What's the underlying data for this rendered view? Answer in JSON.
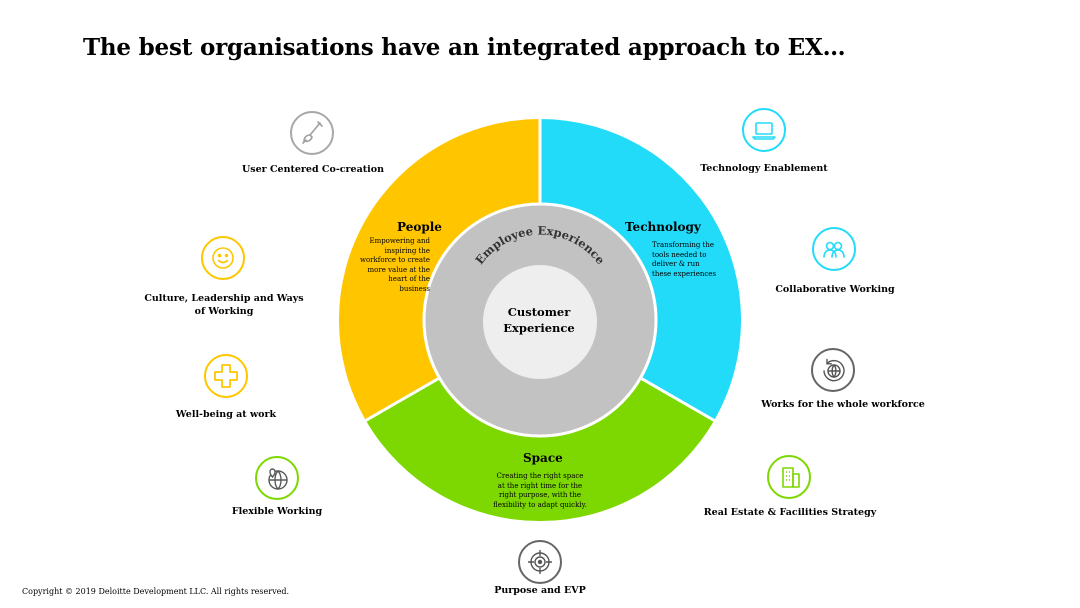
{
  "title": "The best organisations have an integrated approach to EX…",
  "copyright": "Copyright © 2019 Deloitte Development LLC. All rights reserved.",
  "colors": {
    "people": "#ffc600",
    "technology": "#22dbf9",
    "space": "#7dd700",
    "inner": "#c2c2c2",
    "core": "#eeeeee",
    "icon_gray": "#9a9a9a",
    "icon_dark": "#666666"
  },
  "wheel": {
    "ring_label": "Employee Experience",
    "core_line1": "Customer",
    "core_line2": "Experience",
    "people": {
      "title": "People",
      "desc": "Empowering and inspiring the workforce to create more value at the heart of the business"
    },
    "technology": {
      "title": "Technology",
      "desc": "Transforming the tools needed to deliver & run these experiences"
    },
    "space": {
      "title": "Space",
      "desc": "Creating the right space at the right time for the right purpose, with the flexibility to adapt quickly."
    }
  },
  "enablers": [
    {
      "label": "User Centered Co-creation",
      "icon": "paintbrush-icon"
    },
    {
      "label": "Culture, Leadership and Ways of Working",
      "icon": "smiley-icon"
    },
    {
      "label": "Well-being at work",
      "icon": "medical-cross-icon"
    },
    {
      "label": "Flexible Working",
      "icon": "globe-pin-icon"
    },
    {
      "label": "Purpose and EVP",
      "icon": "target-icon"
    },
    {
      "label": "Technology Enablement",
      "icon": "laptop-icon"
    },
    {
      "label": "Collaborative Working",
      "icon": "people-icon"
    },
    {
      "label": "Works for the whole workforce",
      "icon": "globe-cycle-icon"
    },
    {
      "label": "Real Estate & Facilities Strategy",
      "icon": "building-icon"
    }
  ]
}
